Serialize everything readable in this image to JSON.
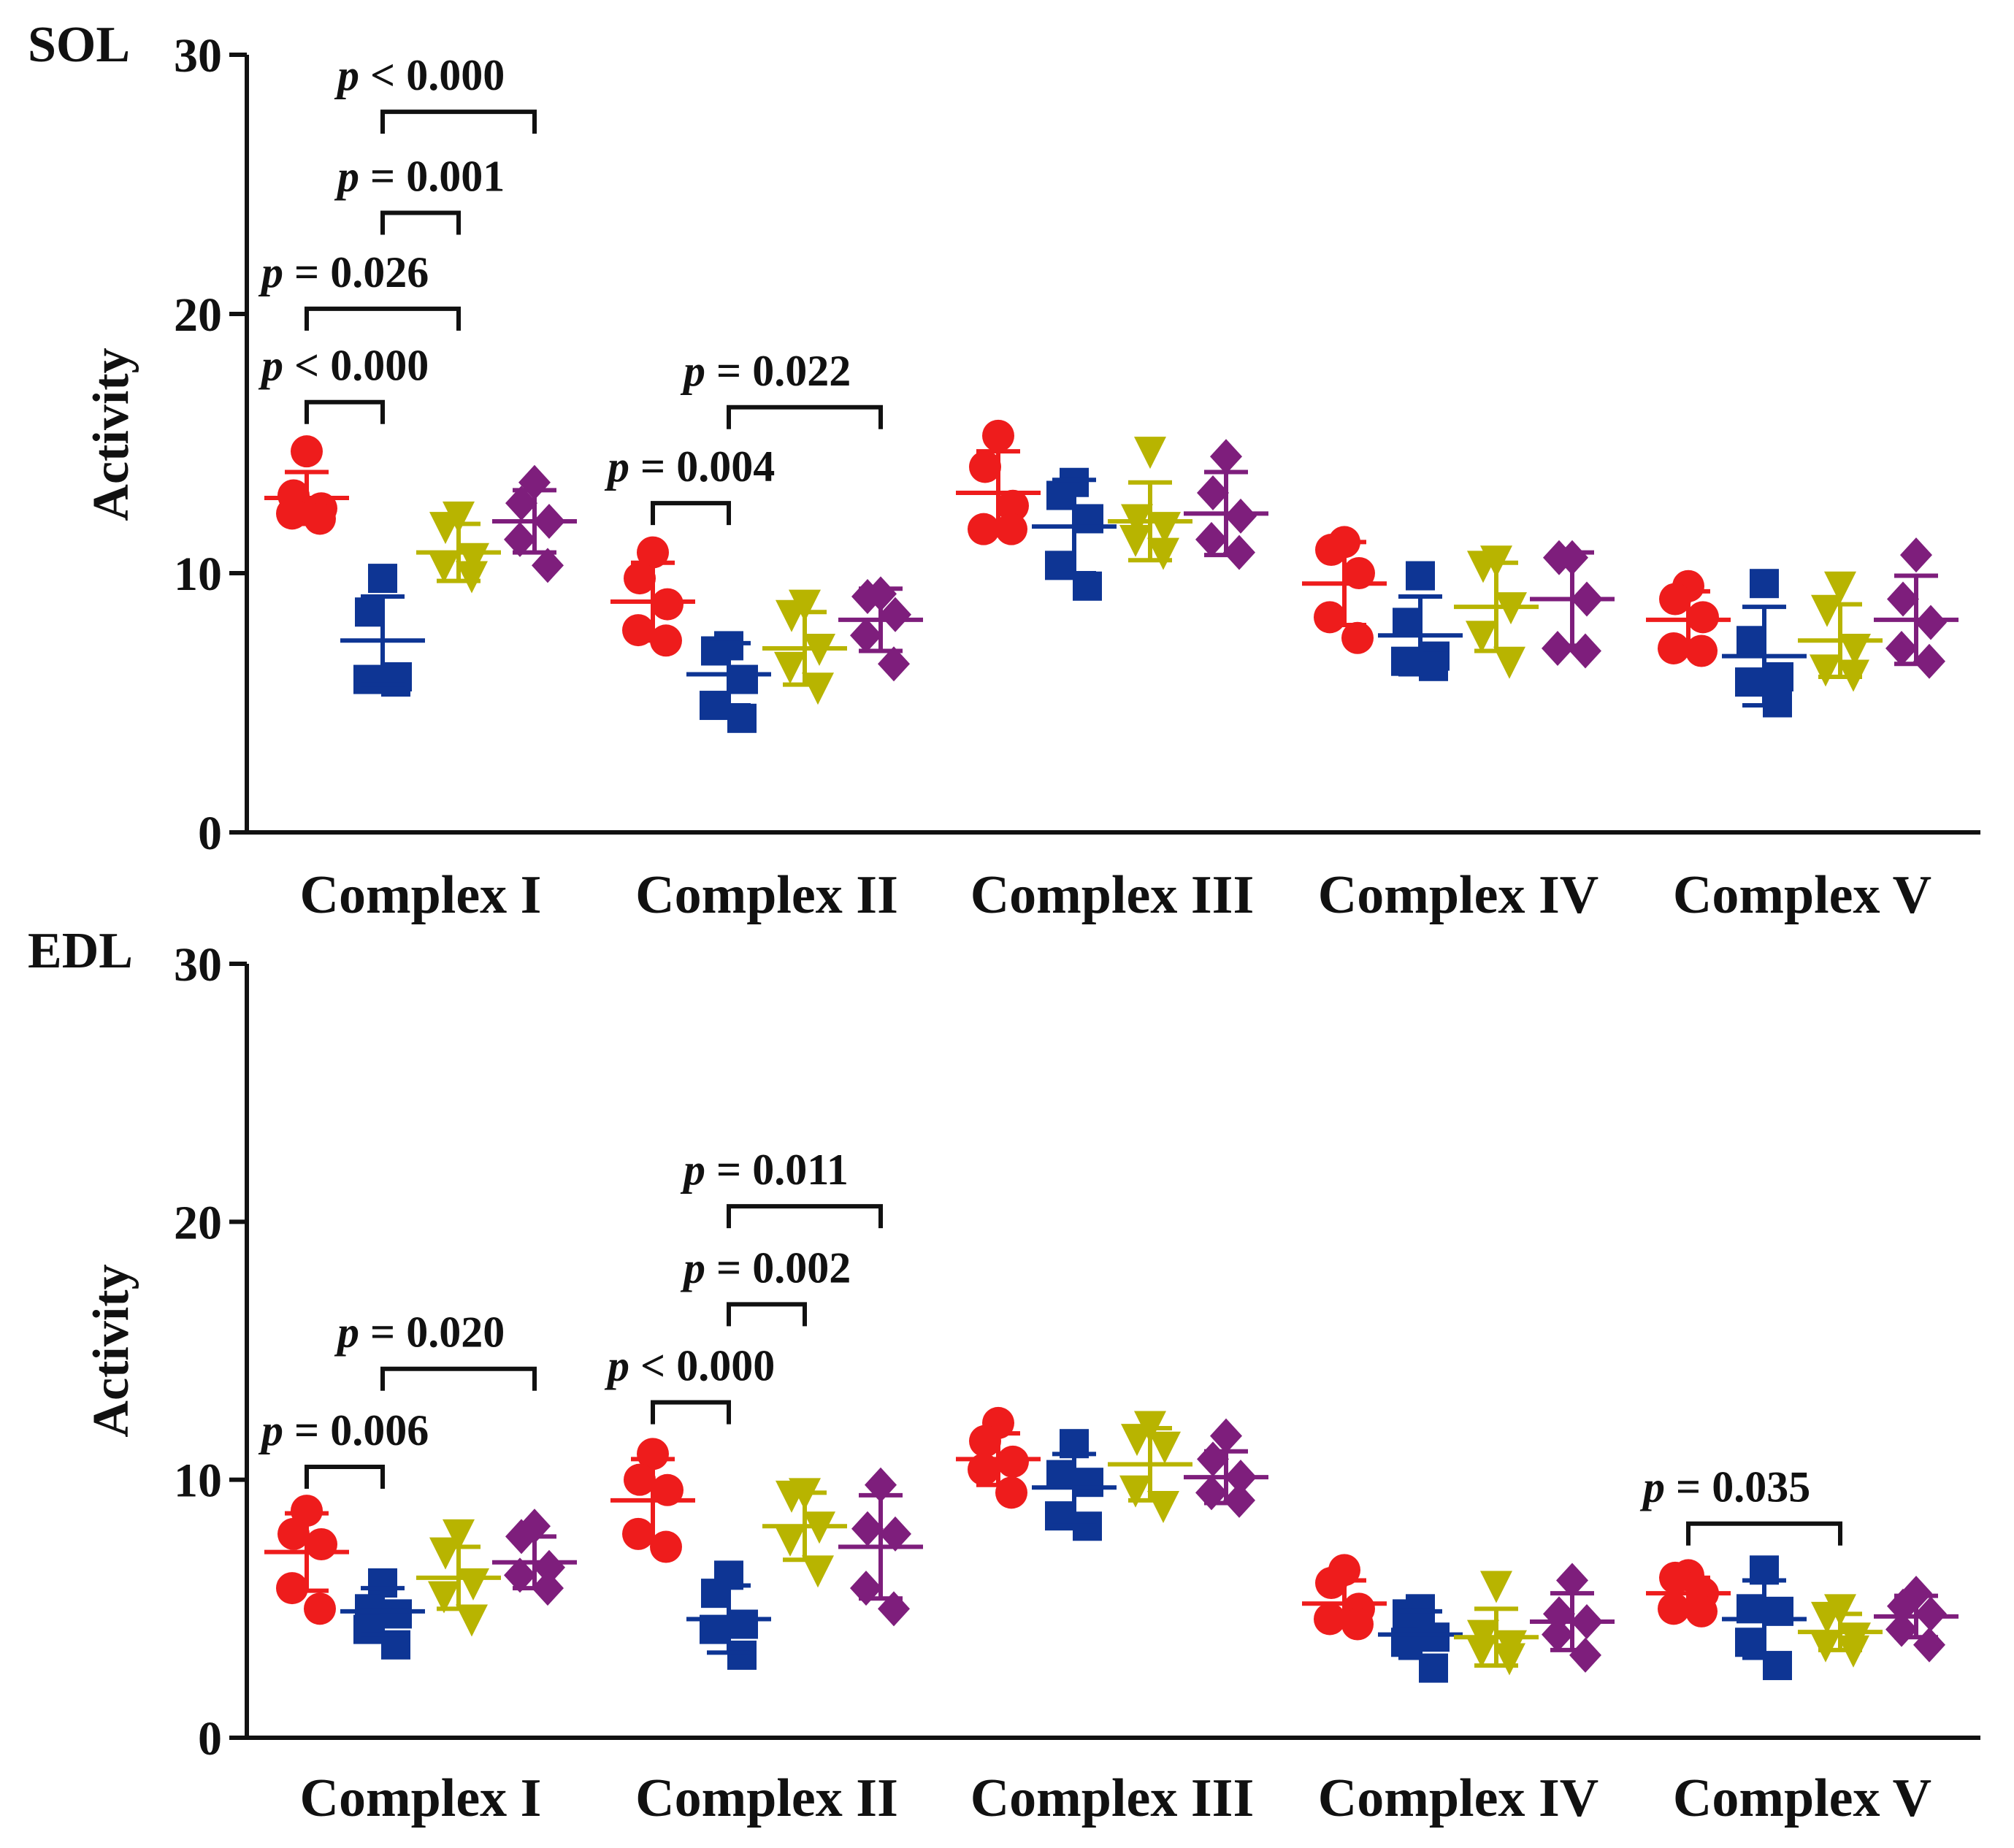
{
  "chart_data": [
    {
      "type": "scatter",
      "panel_label": "SOL",
      "ylabel": "Activity",
      "ylim": [
        0,
        30
      ],
      "yticks": [
        "0",
        "10",
        "20",
        "30"
      ],
      "categories": [
        "Complex I",
        "Complex II",
        "Complex III",
        "Complex IV",
        "Complex V"
      ],
      "series_colors": [
        "#EE1C1C",
        "#0E3594",
        "#B8B400",
        "#7E1E7C"
      ],
      "series_markers": [
        "circle",
        "square",
        "triangle-down",
        "diamond"
      ],
      "groups": [
        {
          "category": "Complex I",
          "series": [
            {
              "points": [
                14.7,
                13.0,
                12.5,
                12.3,
                12.1
              ],
              "mean": 12.9,
              "sd": 1.0
            },
            {
              "points": [
                9.8,
                8.5,
                6.0,
                5.9,
                5.8
              ],
              "mean": 7.4,
              "sd": 1.7
            },
            {
              "points": [
                12.2,
                11.8,
                10.6,
                10.3,
                9.9
              ],
              "mean": 10.8,
              "sd": 1.1
            },
            {
              "points": [
                13.5,
                12.7,
                12.0,
                11.3,
                10.3
              ],
              "mean": 12.0,
              "sd": 1.2
            }
          ]
        },
        {
          "category": "Complex II",
          "series": [
            {
              "points": [
                10.8,
                9.8,
                8.8,
                7.8,
                7.4
              ],
              "mean": 8.9,
              "sd": 1.5
            },
            {
              "points": [
                7.2,
                7.0,
                5.9,
                4.9,
                4.4
              ],
              "mean": 6.1,
              "sd": 1.2
            },
            {
              "points": [
                8.8,
                8.4,
                7.1,
                6.4,
                5.6
              ],
              "mean": 7.1,
              "sd": 1.4
            },
            {
              "points": [
                9.2,
                9.1,
                8.4,
                7.6,
                6.5
              ],
              "mean": 8.2,
              "sd": 1.2
            }
          ]
        },
        {
          "category": "Complex III",
          "series": [
            {
              "points": [
                15.3,
                14.1,
                12.6,
                11.7,
                11.7
              ],
              "mean": 13.1,
              "sd": 1.6
            },
            {
              "points": [
                13.5,
                13.0,
                12.1,
                10.3,
                9.5
              ],
              "mean": 11.8,
              "sd": 1.8
            },
            {
              "points": [
                14.7,
                12.1,
                11.8,
                11.3,
                10.8
              ],
              "mean": 12.0,
              "sd": 1.5
            },
            {
              "points": [
                14.5,
                13.1,
                12.2,
                11.3,
                10.8
              ],
              "mean": 12.3,
              "sd": 1.6
            }
          ]
        },
        {
          "category": "Complex IV",
          "series": [
            {
              "points": [
                11.2,
                10.9,
                10.0,
                8.3,
                7.5
              ],
              "mean": 9.6,
              "sd": 1.6
            },
            {
              "points": [
                9.9,
                8.1,
                6.8,
                6.6,
                6.4
              ],
              "mean": 7.6,
              "sd": 1.5
            },
            {
              "points": [
                10.5,
                10.3,
                8.7,
                7.6,
                6.6
              ],
              "mean": 8.7,
              "sd": 1.7
            },
            {
              "points": [
                10.6,
                10.6,
                9.0,
                7.1,
                7.0
              ],
              "mean": 9.0,
              "sd": 1.8
            }
          ]
        },
        {
          "category": "Complex V",
          "series": [
            {
              "points": [
                9.5,
                9.0,
                8.3,
                7.1,
                7.0
              ],
              "mean": 8.2,
              "sd": 1.1
            },
            {
              "points": [
                9.6,
                7.4,
                6.0,
                5.8,
                5.0
              ],
              "mean": 6.8,
              "sd": 1.9
            },
            {
              "points": [
                9.5,
                8.6,
                7.1,
                6.3,
                6.1
              ],
              "mean": 7.4,
              "sd": 1.4
            },
            {
              "points": [
                10.7,
                9.0,
                8.1,
                7.1,
                6.6
              ],
              "mean": 8.2,
              "sd": 1.7
            }
          ]
        }
      ],
      "annotations": [
        {
          "text": "< 0.000",
          "category": "Complex I",
          "from": 0,
          "to": 1,
          "y": 16.6
        },
        {
          "text": "= 0.026",
          "category": "Complex I",
          "from": 0,
          "to": 2,
          "y": 20.2
        },
        {
          "text": "= 0.001",
          "category": "Complex I",
          "from": 1,
          "to": 2,
          "y": 23.9
        },
        {
          "text": "< 0.000",
          "category": "Complex I",
          "from": 1,
          "to": 3,
          "y": 27.8
        },
        {
          "text": "= 0.004",
          "category": "Complex II",
          "from": 0,
          "to": 1,
          "y": 12.7
        },
        {
          "text": "= 0.022",
          "category": "Complex II",
          "from": 1,
          "to": 3,
          "y": 16.4
        }
      ]
    },
    {
      "type": "scatter",
      "panel_label": "EDL",
      "ylabel": "Activity",
      "ylim": [
        0,
        30
      ],
      "yticks": [
        "0",
        "10",
        "20",
        "30"
      ],
      "categories": [
        "Complex I",
        "Complex II",
        "Complex III",
        "Complex IV",
        "Complex V"
      ],
      "series_colors": [
        "#EE1C1C",
        "#0E3594",
        "#B8B400",
        "#7E1E7C"
      ],
      "series_markers": [
        "circle",
        "square",
        "triangle-down",
        "diamond"
      ],
      "groups": [
        {
          "category": "Complex I",
          "series": [
            {
              "points": [
                8.8,
                7.9,
                7.5,
                5.8,
                5.0
              ],
              "mean": 7.2,
              "sd": 1.5
            },
            {
              "points": [
                6.0,
                5.0,
                4.8,
                4.2,
                3.6
              ],
              "mean": 4.9,
              "sd": 0.9
            },
            {
              "points": [
                7.9,
                7.2,
                6.0,
                5.5,
                4.6
              ],
              "mean": 6.2,
              "sd": 1.2
            },
            {
              "points": [
                8.2,
                7.8,
                6.6,
                6.3,
                5.8
              ],
              "mean": 6.8,
              "sd": 1.0
            }
          ]
        },
        {
          "category": "Complex II",
          "series": [
            {
              "points": [
                11.0,
                10.0,
                9.6,
                7.9,
                7.4
              ],
              "mean": 9.2,
              "sd": 1.6
            },
            {
              "points": [
                6.3,
                5.6,
                4.4,
                4.2,
                3.2
              ],
              "mean": 4.6,
              "sd": 1.3
            },
            {
              "points": [
                9.5,
                9.4,
                8.2,
                7.7,
                6.5
              ],
              "mean": 8.2,
              "sd": 1.3
            },
            {
              "points": [
                9.8,
                8.1,
                7.9,
                5.8,
                5.0
              ],
              "mean": 7.4,
              "sd": 2.0
            }
          ]
        },
        {
          "category": "Complex III",
          "series": [
            {
              "points": [
                12.2,
                11.5,
                10.7,
                10.4,
                9.5
              ],
              "mean": 10.8,
              "sd": 1.0
            },
            {
              "points": [
                11.4,
                10.2,
                9.9,
                8.6,
                8.2
              ],
              "mean": 9.7,
              "sd": 1.3
            },
            {
              "points": [
                12.1,
                11.6,
                11.3,
                9.6,
                9.0
              ],
              "mean": 10.6,
              "sd": 1.4
            },
            {
              "points": [
                11.7,
                10.8,
                10.1,
                9.5,
                9.2
              ],
              "mean": 10.1,
              "sd": 1.0
            }
          ]
        },
        {
          "category": "Complex IV",
          "series": [
            {
              "points": [
                6.5,
                6.0,
                5.0,
                4.6,
                4.4
              ],
              "mean": 5.2,
              "sd": 0.9
            },
            {
              "points": [
                5.0,
                4.8,
                3.9,
                3.7,
                2.7
              ],
              "mean": 4.0,
              "sd": 0.9
            },
            {
              "points": [
                5.9,
                4.0,
                3.6,
                3.4,
                3.1
              ],
              "mean": 3.9,
              "sd": 1.1
            },
            {
              "points": [
                6.1,
                4.8,
                4.5,
                4.0,
                3.2
              ],
              "mean": 4.5,
              "sd": 1.1
            }
          ]
        },
        {
          "category": "Complex V",
          "series": [
            {
              "points": [
                6.3,
                6.2,
                5.6,
                5.0,
                4.9
              ],
              "mean": 5.6,
              "sd": 0.6
            },
            {
              "points": [
                6.5,
                5.0,
                4.9,
                3.7,
                2.8
              ],
              "mean": 4.6,
              "sd": 1.5
            },
            {
              "points": [
                5.0,
                4.7,
                3.9,
                3.6,
                3.4
              ],
              "mean": 4.1,
              "sd": 0.7
            },
            {
              "points": [
                5.6,
                5.1,
                4.8,
                4.2,
                3.6
              ],
              "mean": 4.7,
              "sd": 0.8
            }
          ]
        }
      ],
      "annotations": [
        {
          "text": "= 0.006",
          "category": "Complex I",
          "from": 0,
          "to": 1,
          "y": 10.5
        },
        {
          "text": "= 0.020",
          "category": "Complex I",
          "from": 1,
          "to": 3,
          "y": 14.3
        },
        {
          "text": "< 0.000",
          "category": "Complex II",
          "from": 0,
          "to": 1,
          "y": 13.0
        },
        {
          "text": "= 0.002",
          "category": "Complex II",
          "from": 1,
          "to": 2,
          "y": 16.8
        },
        {
          "text": "= 0.011",
          "category": "Complex II",
          "from": 1,
          "to": 3,
          "y": 20.6
        },
        {
          "text": "= 0.035",
          "category": "Complex V",
          "from": 0,
          "to": 2,
          "y": 8.3
        }
      ]
    }
  ],
  "annotation_symbol": "p"
}
